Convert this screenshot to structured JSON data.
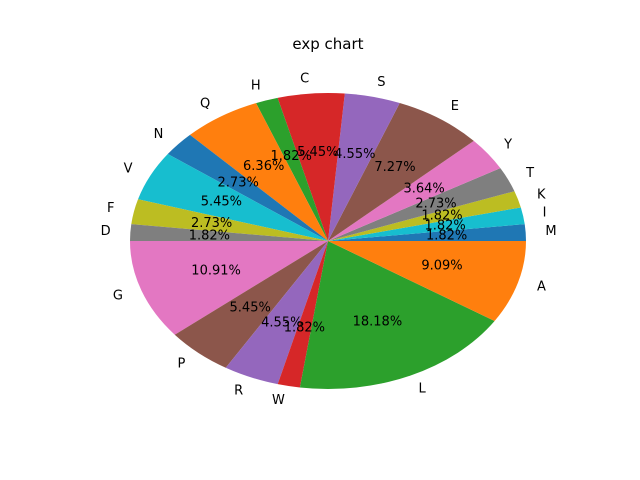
{
  "chart_data": {
    "type": "pie",
    "title": "exp chart",
    "slices": [
      {
        "label": "M",
        "value": 1.82,
        "pct_text": "1.82%",
        "color": "#1f77b4"
      },
      {
        "label": "I",
        "value": 1.82,
        "pct_text": "1.82%",
        "color": "#17becf"
      },
      {
        "label": "K",
        "value": 1.82,
        "pct_text": "1.82%",
        "color": "#bcbd22"
      },
      {
        "label": "T",
        "value": 2.73,
        "pct_text": "2.73%",
        "color": "#7f7f7f"
      },
      {
        "label": "Y",
        "value": 3.64,
        "pct_text": "3.64%",
        "color": "#e377c2"
      },
      {
        "label": "E",
        "value": 7.27,
        "pct_text": "7.27%",
        "color": "#8c564b"
      },
      {
        "label": "S",
        "value": 4.55,
        "pct_text": "4.55%",
        "color": "#9467bd"
      },
      {
        "label": "C",
        "value": 5.45,
        "pct_text": "5.45%",
        "color": "#d62728"
      },
      {
        "label": "H",
        "value": 1.82,
        "pct_text": "1.82%",
        "color": "#2ca02c"
      },
      {
        "label": "Q",
        "value": 6.36,
        "pct_text": "6.36%",
        "color": "#ff7f0e"
      },
      {
        "label": "N",
        "value": 2.73,
        "pct_text": "2.73%",
        "color": "#1f77b4"
      },
      {
        "label": "V",
        "value": 5.45,
        "pct_text": "5.45%",
        "color": "#17becf"
      },
      {
        "label": "F",
        "value": 2.73,
        "pct_text": "2.73%",
        "color": "#bcbd22"
      },
      {
        "label": "D",
        "value": 1.82,
        "pct_text": "1.82%",
        "color": "#7f7f7f"
      },
      {
        "label": "G",
        "value": 10.91,
        "pct_text": "10.91%",
        "color": "#e377c2"
      },
      {
        "label": "P",
        "value": 5.45,
        "pct_text": "5.45%",
        "color": "#8c564b"
      },
      {
        "label": "R",
        "value": 4.55,
        "pct_text": "4.55%",
        "color": "#9467bd"
      },
      {
        "label": "W",
        "value": 1.82,
        "pct_text": "1.82%",
        "color": "#d62728"
      },
      {
        "label": "L",
        "value": 18.18,
        "pct_text": "18.18%",
        "color": "#2ca02c"
      },
      {
        "label": "A",
        "value": 9.09,
        "pct_text": "9.09%",
        "color": "#ff7f0e"
      }
    ]
  }
}
